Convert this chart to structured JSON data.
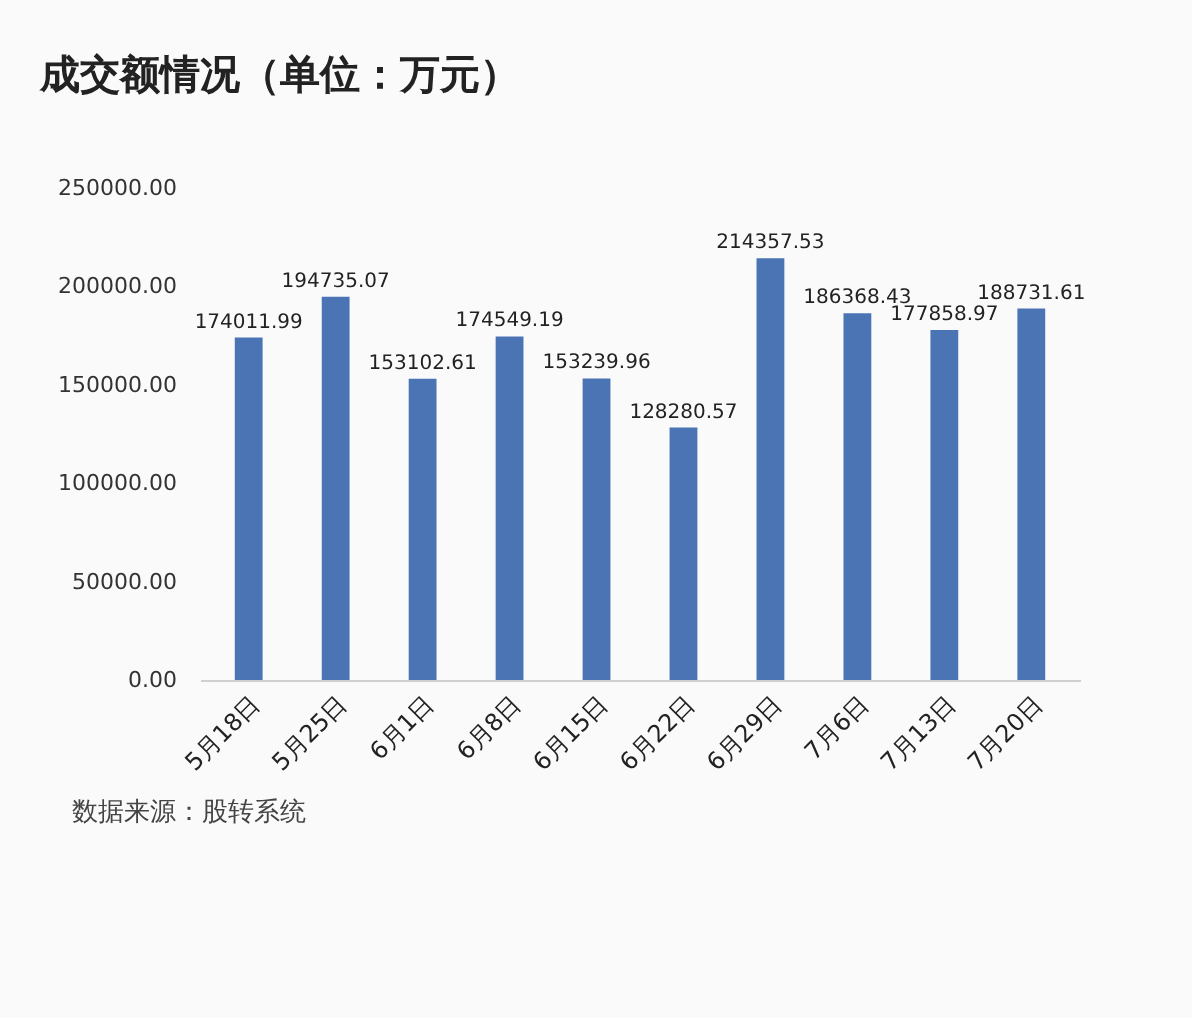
{
  "chart_data": {
    "type": "bar",
    "title": "成交额情况（单位：万元）",
    "categories": [
      "5月18日",
      "5月25日",
      "6月1日",
      "6月8日",
      "6月15日",
      "6月22日",
      "6月29日",
      "7月6日",
      "7月13日",
      "7月20日"
    ],
    "values": [
      174011.99,
      194735.07,
      153102.61,
      174549.19,
      153239.96,
      128280.57,
      214357.53,
      186368.43,
      177858.97,
      188731.61
    ],
    "color": "#4a74b4",
    "ylim": [
      0,
      250000
    ],
    "yticks": [
      {
        "value": 0,
        "label": "0.00"
      },
      {
        "value": 50000,
        "label": "50000.00"
      },
      {
        "value": 100000,
        "label": "100000.00"
      },
      {
        "value": 150000,
        "label": "150000.00"
      },
      {
        "value": 200000,
        "label": "200000.00"
      },
      {
        "value": 250000,
        "label": "250000.00"
      }
    ],
    "data_labels": true,
    "grid": false,
    "annotations": [
      "数据来源：股转系统"
    ]
  }
}
